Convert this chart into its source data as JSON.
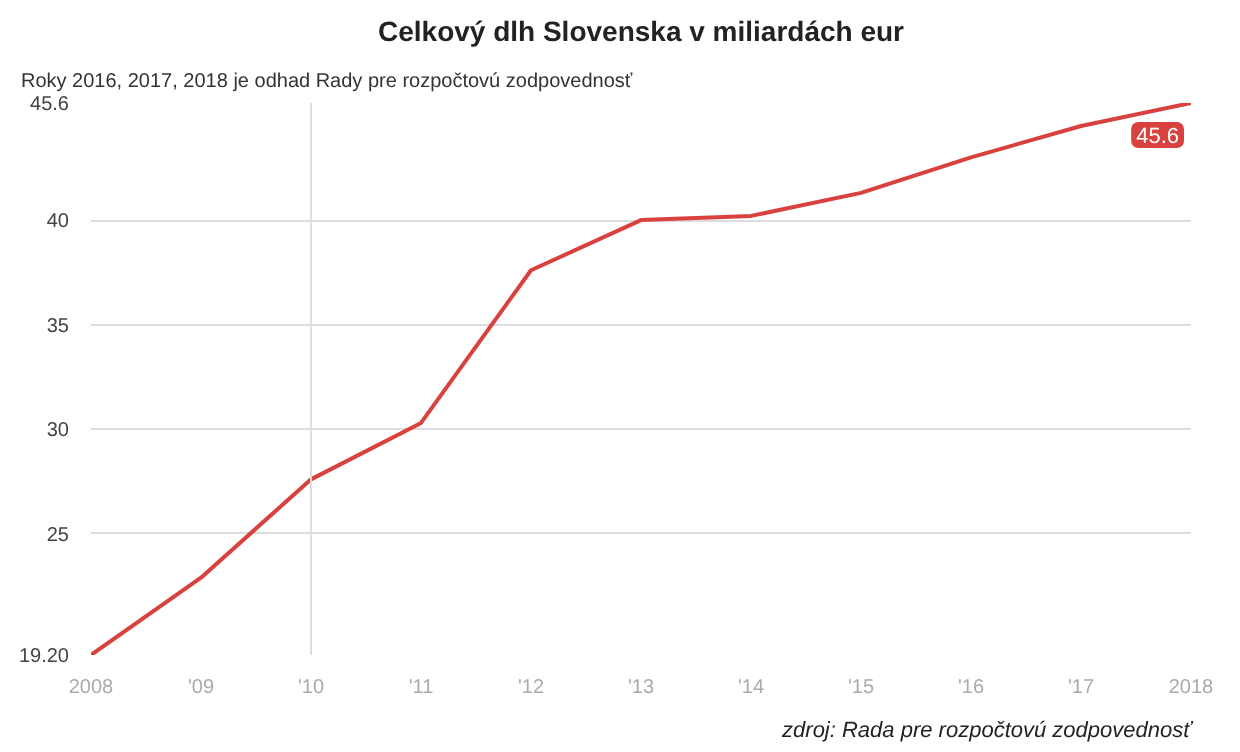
{
  "chart_data": {
    "type": "line",
    "title": "Celkový dlh Slovenska v miliardách eur",
    "subtitle": "Roky 2016, 2017, 2018 je odhad Rady pre rozpočtovú zodpovednosť",
    "annotations": [
      "zdroj: Rada pre rozpočtovú zodpovednosť"
    ],
    "x": [
      2008,
      2009,
      2010,
      2011,
      2012,
      2013,
      2014,
      2015,
      2016,
      2017,
      2018
    ],
    "series": [
      {
        "color": "#d9413f",
        "values": [
          19.2,
          22.9,
          27.6,
          30.3,
          37.6,
          40.0,
          40.2,
          41.3,
          43.0,
          44.5,
          45.6
        ],
        "value_labels": [
          null,
          null,
          null,
          null,
          null,
          null,
          null,
          null,
          null,
          null,
          "45.6"
        ]
      }
    ],
    "xlim": [
      2008,
      2018
    ],
    "xticks": [
      {
        "value": 2008,
        "label": "2008"
      },
      {
        "value": 2009,
        "label": "'09"
      },
      {
        "value": 2010,
        "label": "'10"
      },
      {
        "value": 2011,
        "label": "'11"
      },
      {
        "value": 2012,
        "label": "'12"
      },
      {
        "value": 2013,
        "label": "'13"
      },
      {
        "value": 2014,
        "label": "'14"
      },
      {
        "value": 2015,
        "label": "'15"
      },
      {
        "value": 2016,
        "label": "'16"
      },
      {
        "value": 2017,
        "label": "'17"
      },
      {
        "value": 2018,
        "label": "2018"
      }
    ],
    "ylim": [
      19.2,
      45.6
    ],
    "yticks": [
      {
        "value": 19.2,
        "label": "19.20"
      },
      25,
      30,
      35,
      40,
      45.6
    ],
    "ref_lines": [
      {
        "axis": "x",
        "value": 2010,
        "color": "#dddddd"
      }
    ],
    "grid": "y",
    "marker": "none",
    "line_style": "solid"
  }
}
